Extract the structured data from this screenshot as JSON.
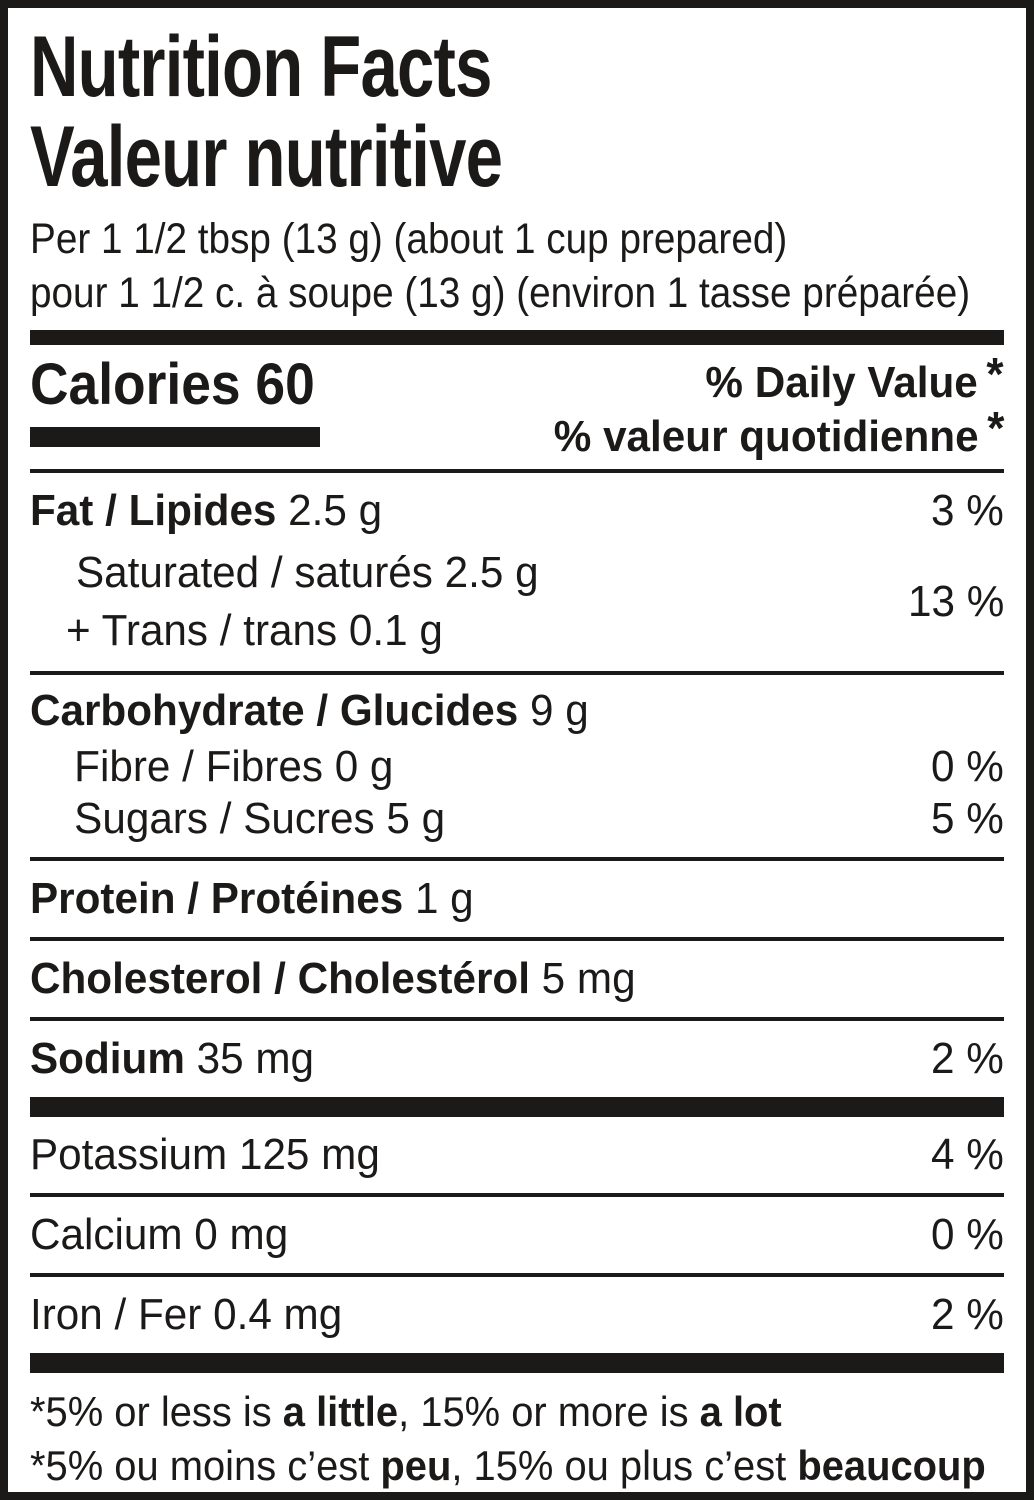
{
  "colors": {
    "ink": "#1c1a19",
    "background": "#ffffff"
  },
  "header": {
    "title_en": "Nutrition Facts",
    "title_fr": "Valeur nutritive",
    "serving_en": "Per 1 1/2 tbsp (13 g) (about 1 cup prepared)",
    "serving_fr": "pour 1 1/2 c. à soupe (13 g) (environ 1 tasse préparée)"
  },
  "calories": {
    "label": "Calories",
    "value": "60"
  },
  "daily_value_header": {
    "en": "% Daily Value",
    "fr": "% valeur quotidienne",
    "asterisk": "*"
  },
  "rows": {
    "fat": {
      "name": "Fat / Lipides",
      "amount": "2.5 g",
      "dv": "3 %"
    },
    "saturated": {
      "line1_name": "Saturated / saturés",
      "line1_amount": "2.5 g",
      "line2_name": "+ Trans / trans",
      "line2_amount": "0.1 g",
      "dv": "13 %"
    },
    "carbohydrate": {
      "name": "Carbohydrate / Glucides",
      "amount": "9 g"
    },
    "fibre": {
      "name": "Fibre / Fibres",
      "amount": "0 g",
      "dv": "0 %"
    },
    "sugars": {
      "name": "Sugars / Sucres",
      "amount": "5 g",
      "dv": "5 %"
    },
    "protein": {
      "name": "Protein / Protéines",
      "amount": "1 g"
    },
    "cholesterol": {
      "name": "Cholesterol / Cholestérol",
      "amount": "5 mg"
    },
    "sodium": {
      "name": "Sodium",
      "amount": "35 mg",
      "dv": "2 %"
    },
    "potassium": {
      "name": "Potassium",
      "amount": "125 mg",
      "dv": "4 %"
    },
    "calcium": {
      "name": "Calcium",
      "amount": "0 mg",
      "dv": "0 %"
    },
    "iron": {
      "name": "Iron / Fer",
      "amount": "0.4 mg",
      "dv": "2 %"
    }
  },
  "footnotes": {
    "en": {
      "pre": "*5% or less is ",
      "bold1": "a little",
      "mid": ", 15% or more is ",
      "bold2": "a lot"
    },
    "fr": {
      "pre": "*5% ou moins c’est ",
      "bold1": "peu",
      "mid": ", 15% ou plus c’est ",
      "bold2": "beaucoup"
    }
  }
}
